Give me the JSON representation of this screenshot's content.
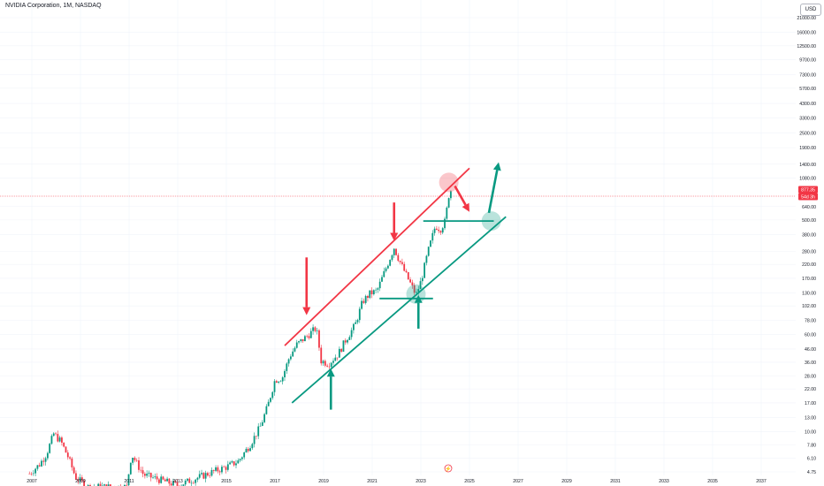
{
  "header": {
    "symbol_title": "NVIDIA Corporation, 1M, NASDAQ",
    "currency": "USD"
  },
  "chart_data": {
    "type": "candlestick",
    "title": "NVIDIA Corporation, 1M, NASDAQ",
    "y_scale": "log",
    "y_ticks": [
      "21000.00",
      "16000.00",
      "12500.00",
      "9700.00",
      "7300.00",
      "5700.00",
      "4300.00",
      "3300.00",
      "2500.00",
      "1900.00",
      "1400.00",
      "1080.00",
      "640.00",
      "500.00",
      "380.00",
      "280.00",
      "220.00",
      "170.00",
      "130.00",
      "102.00",
      "78.00",
      "60.00",
      "46.00",
      "36.00",
      "28.00",
      "22.00",
      "17.00",
      "13.00",
      "10.00",
      "7.80",
      "6.10",
      "4.75"
    ],
    "x_ticks": [
      "2007",
      "2009",
      "2011",
      "2013",
      "2015",
      "2017",
      "2019",
      "2021",
      "2023",
      "2025",
      "2027",
      "2029",
      "2031",
      "2033",
      "2035",
      "2037"
    ],
    "price_labels": [
      {
        "text": "877.35",
        "color": "#f23645"
      },
      {
        "text": "54d 3h",
        "color": "#f23645"
      }
    ],
    "current_price": 877.35,
    "colors": {
      "up": "#089981",
      "down": "#f23645",
      "grid": "#f0f3fa",
      "text": "#131722"
    },
    "price_points": [
      {
        "t": 2006.9,
        "p": 4.6
      },
      {
        "t": 2007.3,
        "p": 5.4
      },
      {
        "t": 2007.6,
        "p": 6.6
      },
      {
        "t": 2007.9,
        "p": 9.6
      },
      {
        "t": 2008.2,
        "p": 8.3
      },
      {
        "t": 2008.5,
        "p": 6.2
      },
      {
        "t": 2008.8,
        "p": 4.3
      },
      {
        "t": 2009.3,
        "p": 3.6
      },
      {
        "t": 2010.9,
        "p": 3.6
      },
      {
        "t": 2011.1,
        "p": 6.6
      },
      {
        "t": 2011.4,
        "p": 5.2
      },
      {
        "t": 2011.6,
        "p": 4.5
      },
      {
        "t": 2013.0,
        "p": 3.7
      },
      {
        "t": 2014.0,
        "p": 4.4
      },
      {
        "t": 2014.5,
        "p": 4.8
      },
      {
        "t": 2015.0,
        "p": 5.2
      },
      {
        "t": 2015.5,
        "p": 5.8
      },
      {
        "t": 2016.0,
        "p": 8.0
      },
      {
        "t": 2016.4,
        "p": 11.0
      },
      {
        "t": 2016.7,
        "p": 16.0
      },
      {
        "t": 2017.0,
        "p": 26.0
      },
      {
        "t": 2017.3,
        "p": 27.0
      },
      {
        "t": 2017.6,
        "p": 40.0
      },
      {
        "t": 2017.9,
        "p": 50.0
      },
      {
        "t": 2018.3,
        "p": 58.0
      },
      {
        "t": 2018.7,
        "p": 68.0
      },
      {
        "t": 2018.9,
        "p": 37.0
      },
      {
        "t": 2019.2,
        "p": 35.0
      },
      {
        "t": 2019.6,
        "p": 42.0
      },
      {
        "t": 2019.9,
        "p": 54.0
      },
      {
        "t": 2020.3,
        "p": 72.0
      },
      {
        "t": 2020.6,
        "p": 110.0
      },
      {
        "t": 2020.9,
        "p": 128.0
      },
      {
        "t": 2021.2,
        "p": 135.0
      },
      {
        "t": 2021.5,
        "p": 190.0
      },
      {
        "t": 2021.9,
        "p": 300.0
      },
      {
        "t": 2022.1,
        "p": 240.0
      },
      {
        "t": 2022.4,
        "p": 180.0
      },
      {
        "t": 2022.6,
        "p": 150.0
      },
      {
        "t": 2022.8,
        "p": 125.0
      },
      {
        "t": 2023.0,
        "p": 160.0
      },
      {
        "t": 2023.3,
        "p": 280.0
      },
      {
        "t": 2023.6,
        "p": 450.0
      },
      {
        "t": 2023.8,
        "p": 420.0
      },
      {
        "t": 2024.0,
        "p": 490.0
      },
      {
        "t": 2024.15,
        "p": 790.0
      },
      {
        "t": 2024.25,
        "p": 877.35
      }
    ],
    "annotations": {
      "upper_channel": {
        "t1": 2017.4,
        "p1": 49.0,
        "t2": 2025.0,
        "p2": 1300.0,
        "color": "#f23645"
      },
      "lower_channel": {
        "t1": 2017.7,
        "p1": 17.0,
        "t2": 2026.5,
        "p2": 530.0,
        "color": "#089981"
      },
      "support_levels": [
        {
          "t1": 2021.3,
          "t2": 2023.5,
          "p": 117.0,
          "color": "#089981"
        },
        {
          "t1": 2023.1,
          "t2": 2026.0,
          "p": 490.0,
          "color": "#089981"
        }
      ],
      "down_arrows": [
        {
          "t": 2018.3,
          "p1": 250.0,
          "p2": 86.0,
          "color": "#f23645"
        },
        {
          "t": 2021.9,
          "p1": 690.0,
          "p2": 340.0,
          "color": "#f23645"
        }
      ],
      "up_arrows": [
        {
          "t": 2019.3,
          "p1": 15.0,
          "p2": 32.0,
          "color": "#089981"
        },
        {
          "t": 2022.9,
          "p1": 67.0,
          "p2": 125.0,
          "color": "#089981"
        }
      ],
      "diag_arrows": [
        {
          "t1": 2024.4,
          "p1": 935.0,
          "t2": 2025.0,
          "p2": 580.0,
          "color": "#f23645"
        },
        {
          "t1": 2025.8,
          "p1": 570.0,
          "t2": 2026.2,
          "p2": 1450.0,
          "color": "#089981"
        }
      ],
      "circles": [
        {
          "t": 2024.15,
          "p": 1000.0,
          "color": "#f23645"
        },
        {
          "t": 2022.8,
          "p": 127.0,
          "color": "#089981"
        },
        {
          "t": 2025.9,
          "p": 490.0,
          "color": "#089981"
        }
      ]
    }
  }
}
